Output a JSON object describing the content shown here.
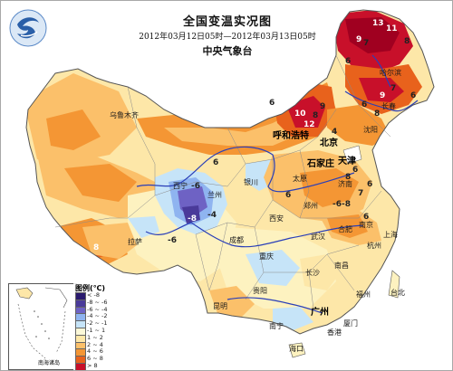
{
  "header": {
    "title": "全国变温实况图",
    "time_range": "2012年03月12日05时—2012年03月13日05时",
    "agency": "中央气象台"
  },
  "legend": {
    "title": "图例(℃)",
    "entries": [
      {
        "label": "< -8",
        "color": "#2a1a6e"
      },
      {
        "label": "-8 ~ -6",
        "color": "#4a3a9a"
      },
      {
        "label": "-6 ~ -4",
        "color": "#6e62c4"
      },
      {
        "label": "-4 ~ -2",
        "color": "#8fb4f0"
      },
      {
        "label": "-2 ~ -1",
        "color": "#c6e4f8"
      },
      {
        "label": "-1 ~ 1",
        "color": "#fbf8d8"
      },
      {
        "label": "1 ~ 2",
        "color": "#fde7a8"
      },
      {
        "label": "2 ~ 4",
        "color": "#fbc06a"
      },
      {
        "label": "4 ~ 6",
        "color": "#f49634"
      },
      {
        "label": "6 ~ 8",
        "color": "#e8621c"
      },
      {
        "label": "> 8",
        "color": "#c8102a"
      }
    ]
  },
  "inset": {
    "label": "南海诸岛"
  },
  "cities": {
    "urumqi": "乌鲁木齐",
    "hohhot": "呼和浩特",
    "beijing": "北京",
    "tianjin": "天津",
    "shijiazhuang": "石家庄",
    "harbin": "哈尔滨",
    "changchun": "长春",
    "shenyang": "沈阳",
    "taiyuan": "太原",
    "jinan": "济南",
    "zhengzhou": "郑州",
    "xian": "西安",
    "lanzhou": "兰州",
    "xining": "西宁",
    "yinchuan": "银川",
    "lhasa": "拉萨",
    "chengdu": "成都",
    "chongqing": "重庆",
    "wuhan": "武汉",
    "hefei": "合肥",
    "nanjing": "南京",
    "shanghai": "上海",
    "hangzhou": "杭州",
    "nanchang": "南昌",
    "changsha": "长沙",
    "fuzhou": "福州",
    "guiyang": "贵阳",
    "kunming": "昆明",
    "nanning": "南宁",
    "guangzhou": "广州",
    "haikou": "海口",
    "xiamen": "厦门",
    "hongkong": "香港",
    "taipei": "台北"
  },
  "map_values": {
    "v_ne_13": "13",
    "v_ne_11": "11",
    "v_ne_9": "9",
    "v_ne_7": "7",
    "v_ne_8": "8",
    "v_ne_6": "6",
    "v_nm_6a": "6",
    "v_nm_10": "10",
    "v_nm_8": "8",
    "v_nm_12": "12",
    "v_nm_9": "9",
    "v_nm_6b": "6",
    "v_nm_4": "4",
    "v_nm_7": "7",
    "v_ln_6": "6",
    "v_ln_8": "8",
    "v_ln_9": "9",
    "v_nx_6": "6",
    "v_qh_6": "-6",
    "v_qh_8": "-8",
    "v_qh_4": "-4",
    "v_ah_6": "6",
    "v_ah_68": "-6-8",
    "v_tj_6": "6",
    "v_tj_8": "8",
    "v_tj_7": "7",
    "v_sd_6": "6",
    "v_js_6": "6",
    "v_xz_8": "8",
    "v_sc_6": "-6"
  }
}
